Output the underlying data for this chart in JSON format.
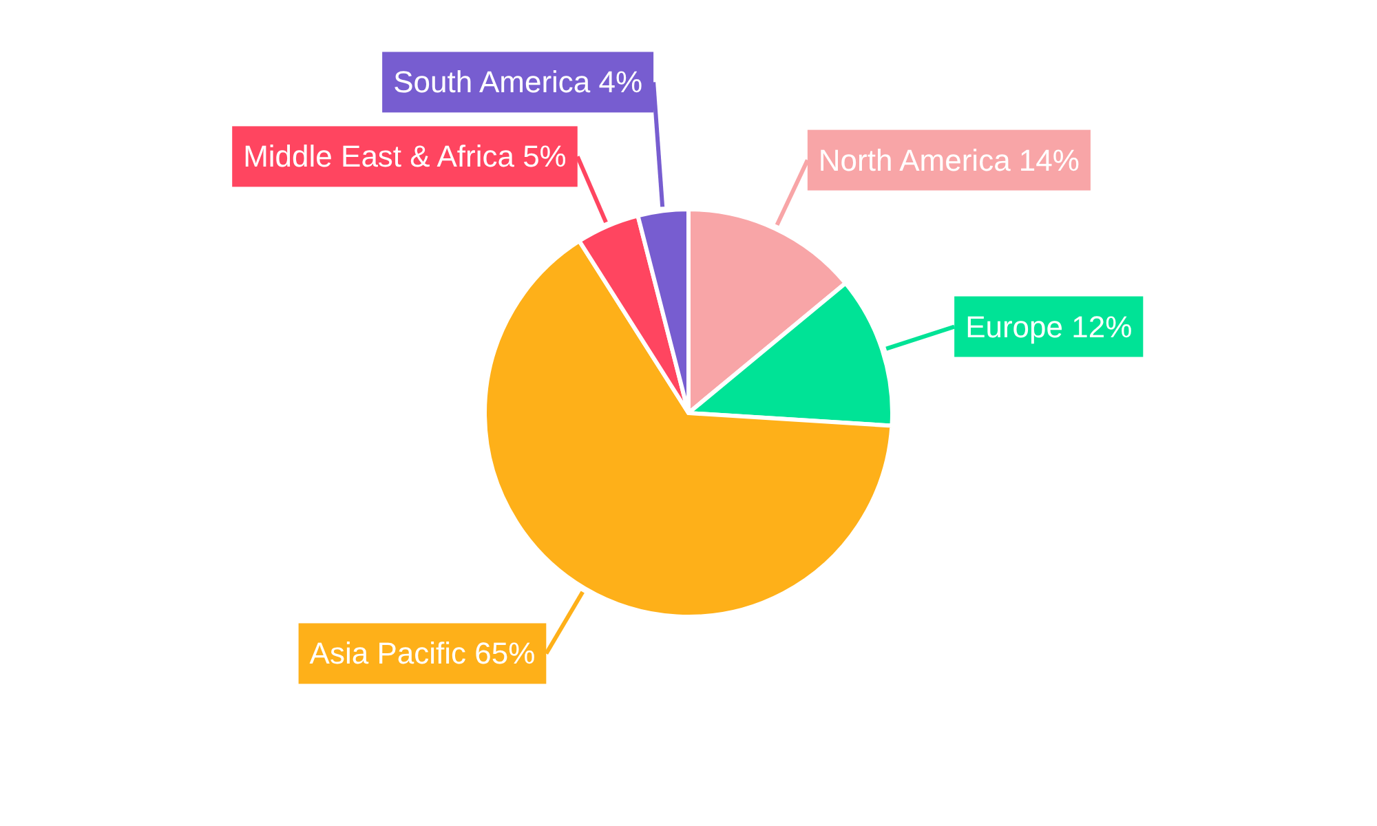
{
  "chart_data": {
    "type": "pie",
    "categories": [
      "North America",
      "Europe",
      "Asia Pacific",
      "Middle East & Africa",
      "South America"
    ],
    "values": [
      14,
      12,
      65,
      5,
      4
    ],
    "colors": [
      "#f8a5a7",
      "#00e396",
      "#feb019",
      "#ff4560",
      "#775dd0"
    ],
    "value_labels": [
      "14%",
      "12%",
      "65%",
      "5%",
      "4%"
    ],
    "legend": false
  }
}
